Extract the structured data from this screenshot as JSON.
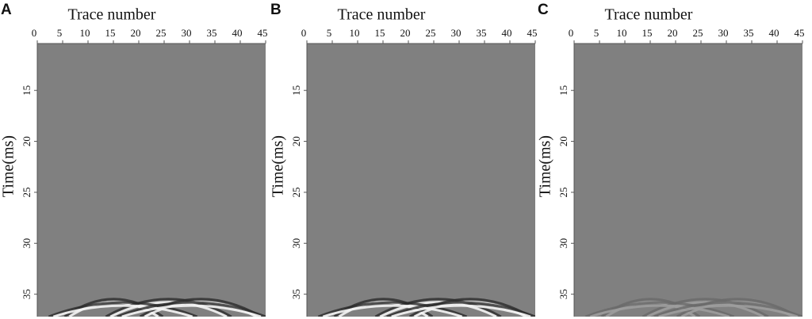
{
  "chart_data": [
    {
      "type": "image",
      "panel": "A",
      "title": "Trace number",
      "y_label": "Time(ms)",
      "color": "#808080",
      "xlim": [
        0,
        45
      ],
      "xticks": [
        0,
        5,
        10,
        15,
        20,
        25,
        30,
        35,
        40,
        45
      ],
      "ylim": [
        10.4,
        37.2
      ],
      "yticks": [
        15,
        20,
        25,
        30,
        35
      ]
    },
    {
      "type": "image",
      "panel": "B",
      "title": "Trace number",
      "y_label": "Time(ms)",
      "color": "#808080",
      "xlim": [
        0,
        45
      ],
      "xticks": [
        0,
        5,
        10,
        15,
        20,
        25,
        30,
        35,
        40,
        45
      ],
      "ylim": [
        10.4,
        37.2
      ],
      "yticks": [
        15,
        20,
        25,
        30,
        35
      ]
    },
    {
      "type": "image",
      "panel": "C",
      "title": "Trace number",
      "y_label": "Time(ms)",
      "color": "#808080",
      "xlim": [
        0,
        45
      ],
      "xticks": [
        0,
        5,
        10,
        15,
        20,
        25,
        30,
        35,
        40,
        45
      ],
      "ylim": [
        10.4,
        37.2
      ],
      "yticks": [
        15,
        20,
        25,
        30,
        35
      ]
    }
  ]
}
